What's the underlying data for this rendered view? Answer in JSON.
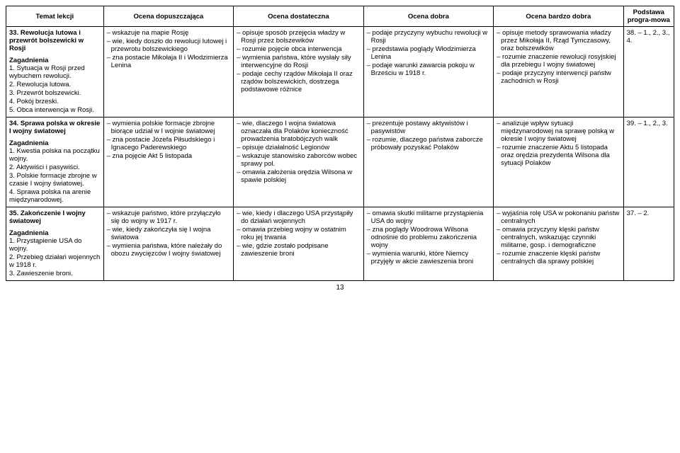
{
  "headers": {
    "temat": "Temat lekcji",
    "oc1": "Ocena dopuszczająca",
    "oc2": "Ocena dostateczna",
    "oc3": "Ocena dobra",
    "oc4": "Ocena bardzo dobra",
    "podstawa": "Podstawa progra-mowa"
  },
  "rows": [
    {
      "temat_head": "33. Rewolucja lutowa i przewrót bolszewicki w Rosji",
      "zag_head": "Zagadnienia",
      "zag": [
        "1. Sytuacja w Rosji przed wybuchem rewolucji.",
        "2. Rewolucja lutowa.",
        "3. Przewrót bolszewicki.",
        "4. Pokój brzeski.",
        "5. Obca interwencja w Rosji."
      ],
      "oc1": [
        "– wskazuje na mapie Rosję",
        "– wie, kiedy doszło do rewolucji lutowej i przewrotu bolszewickiego",
        "– zna postacie Mikołaja II i Włodzimierza Lenina"
      ],
      "oc2": [
        "– opisuje sposób przejęcia władzy w Rosji przez bolszewików",
        "– rozumie pojęcie obca interwencja",
        "– wymienia państwa, które wysłały siły interwencyjne do Rosji",
        "– podaje cechy rządów Mikołaja II oraz rządów bolszewickich, dostrzega podstawowe różnice"
      ],
      "oc3": [
        "– podaje przyczyny wybuchu rewolucji w Rosji",
        "– przedstawia poglądy Włodzimierza Lenina",
        "– podaje warunki zawarcia pokoju w Brześciu w 1918 r."
      ],
      "oc4": [
        "– opisuje metody sprawowania władzy przez Mikołaja II, Rząd Tymczasowy, oraz bolszewików",
        "– rozumie znaczenie rewolucji rosyjskiej dla przebiegu I wojny światowej",
        "– podaje przyczyny interwencji państw zachodnich w Rosji"
      ],
      "podstawa": "38. – 1., 2., 3., 4."
    },
    {
      "temat_head": "34. Sprawa polska w okresie I wojny światowej",
      "zag_head": "Zagadnienia",
      "zag": [
        "1. Kwestia polska na początku wojny.",
        "2. Aktywiści i pasywiści.",
        "3. Polskie formacje zbrojne w czasie I wojny światowej.",
        "4. Sprawa polska na arenie międzynarodowej."
      ],
      "oc1": [
        "– wymienia polskie formacje zbrojne biorące udział w I wojnie światowej",
        "– zna postacie Józefa Piłsudskiego i Ignacego Paderewskiego",
        "– zna pojęcie Akt 5 listopada"
      ],
      "oc2": [
        "– wie, dlaczego I wojna światowa oznaczała dla Polaków konieczność prowadzenia bratobójczych walk",
        "– opisuje działalność Legionów",
        "– wskazuje stanowisko zaborców wobec sprawy pol.",
        "– omawia założenia orędzia Wilsona w spawie polskiej"
      ],
      "oc3": [
        "– prezentuje postawy aktywistów i pasywistów",
        "– rozumie, dlaczego państwa zaborcze próbowały pozyskać Polaków"
      ],
      "oc4": [
        "– analizuje wpływ sytuacji międzynarodowej na sprawę polską w okresie I wojny światowej",
        "– rozumie znaczenie Aktu 5 listopada oraz orędzia prezydenta Wilsona dla sytuacji Polaków"
      ],
      "podstawa": "39. – 1., 2., 3."
    },
    {
      "temat_head": "35. Zakończenie I wojny światowej",
      "zag_head": "Zagadnienia",
      "zag": [
        "1. Przystąpienie USA do wojny.",
        "2. Przebieg działań wojennych w 1918 r.",
        "3. Zawieszenie broni."
      ],
      "oc1": [
        "– wskazuje państwo, które przyłączyło się do wojny w 1917 r.",
        "– wie, kiedy zakończyła się I wojna światowa",
        "– wymienia państwa, które należały do obozu zwycięzców I wojny światowej"
      ],
      "oc2": [
        "– wie, kiedy i dlaczego USA przystąpiły do działań wojennych",
        "– omawia przebieg wojny w ostatnim roku jej trwania",
        "– wie, gdzie zostało podpisane zawieszenie broni"
      ],
      "oc3": [
        "– omawia skutki militarne przystąpienia USA do wojny",
        "– zna poglądy Woodrowa Wilsona odnośnie do problemu zakończenia wojny",
        "– wymienia warunki, które Niemcy przyjęły w akcie zawieszenia broni"
      ],
      "oc4": [
        "– wyjaśnia rolę USA w pokonaniu państw centralnych",
        "– omawia przyczyny klęski państw centralnych, wskazując czynniki militarne, gosp. i demograficzne",
        "– rozumie znaczenie klęski państw centralnych dla sprawy polskiej"
      ],
      "podstawa": "37. – 2."
    }
  ],
  "page_number": "13"
}
